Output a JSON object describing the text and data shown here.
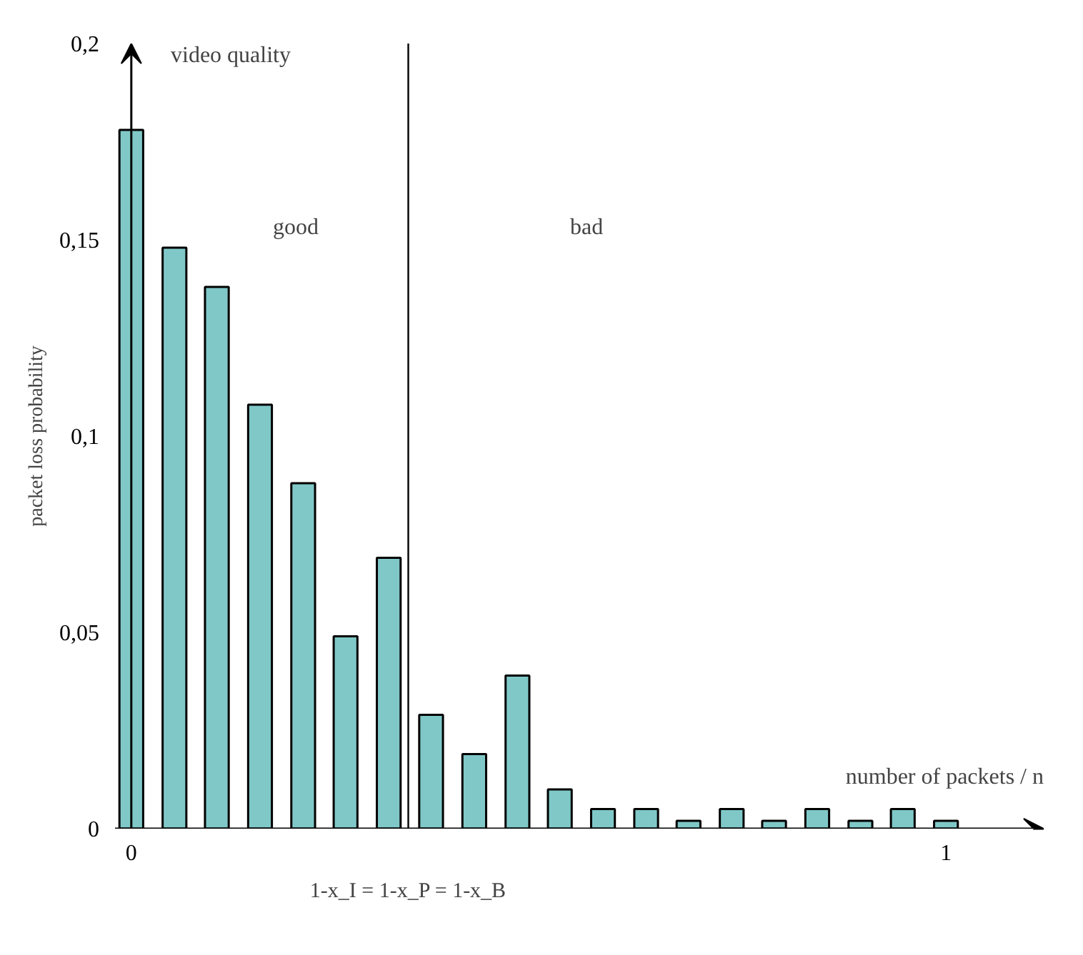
{
  "chart_data": {
    "type": "bar",
    "xlabel": "number of packets / n",
    "ylabel": "packet loss probability",
    "x": [
      0.0,
      0.053,
      0.105,
      0.158,
      0.211,
      0.263,
      0.316,
      0.368,
      0.421,
      0.474,
      0.526,
      0.579,
      0.632,
      0.684,
      0.737,
      0.789,
      0.842,
      0.895,
      0.947,
      1.0
    ],
    "values": [
      0.178,
      0.148,
      0.138,
      0.108,
      0.088,
      0.049,
      0.069,
      0.029,
      0.019,
      0.039,
      0.01,
      0.005,
      0.005,
      0.002,
      0.005,
      0.002,
      0.005,
      0.002,
      0.005,
      0.002
    ],
    "color": "#80c8c8",
    "xlim": [
      -0.02,
      1.12
    ],
    "ylim": [
      0,
      0.2
    ],
    "xticks": [
      0,
      1
    ],
    "yticks": [
      0,
      {
        "value": 0.05,
        "label": "0,05"
      },
      {
        "value": 0.1,
        "label": "0,1"
      },
      {
        "value": 0.15,
        "label": "0,15"
      },
      {
        "value": 0.2,
        "label": "0,2"
      }
    ],
    "ref_lines": [
      {
        "axis": "x",
        "value": 0.34,
        "color": "#000000"
      }
    ],
    "annotations": [
      "good",
      "bad",
      "video quality",
      "1-x_I = 1-x_P = 1-x_B"
    ],
    "grid": false
  }
}
